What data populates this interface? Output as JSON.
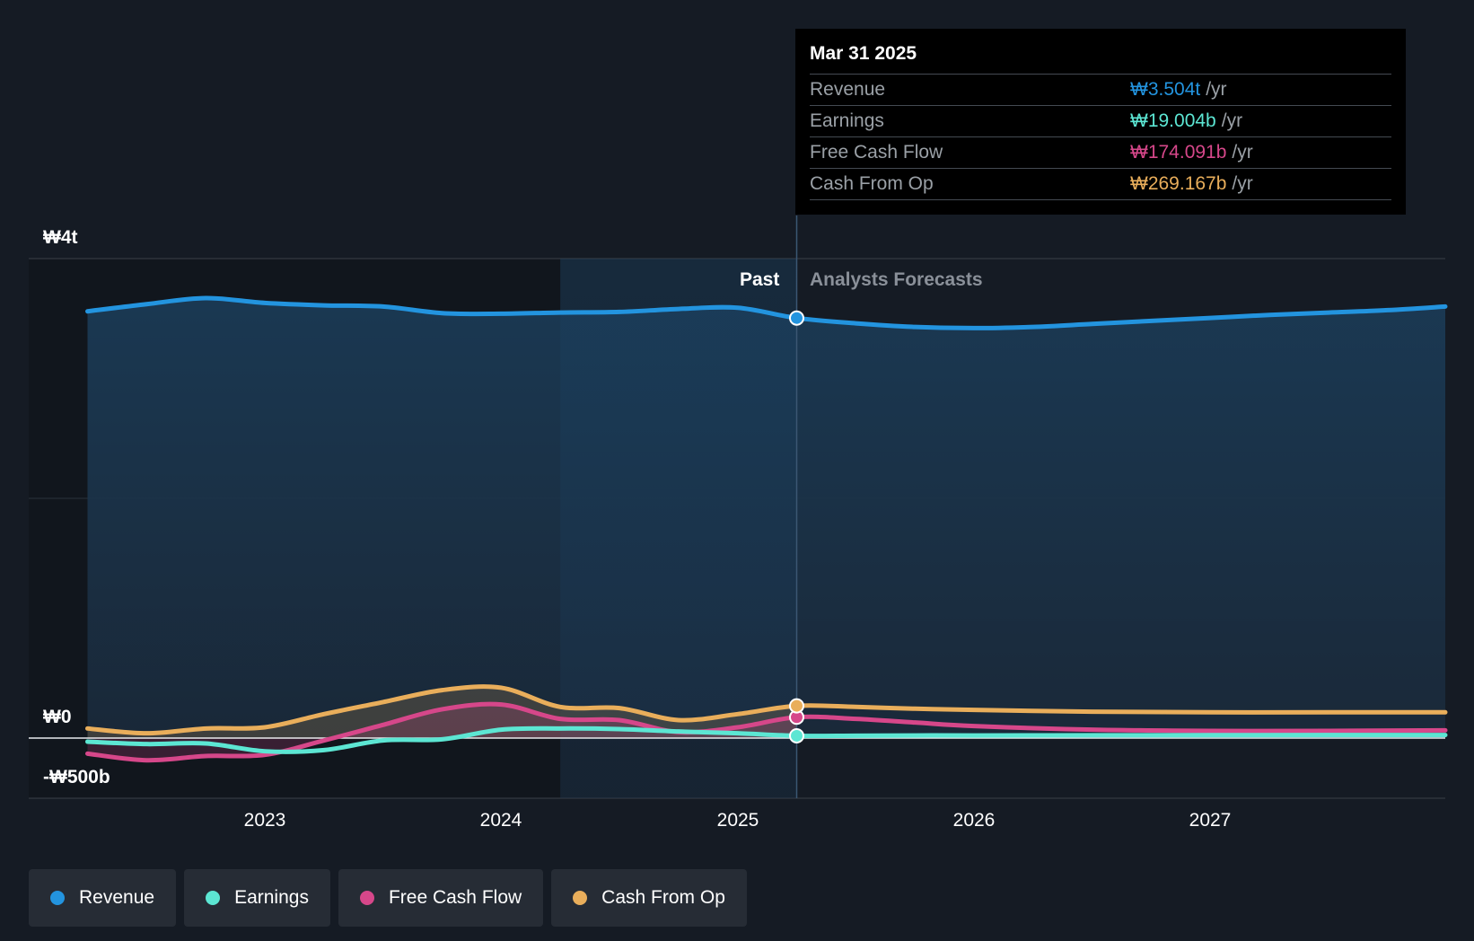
{
  "tooltip": {
    "date": "Mar 31 2025",
    "rows": [
      {
        "label": "Revenue",
        "value": "₩3.504t",
        "unit": "/yr",
        "color": "#2394df"
      },
      {
        "label": "Earnings",
        "value": "₩19.004b",
        "unit": "/yr",
        "color": "#5ce6d3"
      },
      {
        "label": "Free Cash Flow",
        "value": "₩174.091b",
        "unit": "/yr",
        "color": "#d6478a"
      },
      {
        "label": "Cash From Op",
        "value": "₩269.167b",
        "unit": "/yr",
        "color": "#e9ae5b"
      }
    ]
  },
  "sections": {
    "past": "Past",
    "forecast": "Analysts Forecasts"
  },
  "legend": [
    {
      "label": "Revenue",
      "color": "#2394df"
    },
    {
      "label": "Earnings",
      "color": "#5ce6d3"
    },
    {
      "label": "Free Cash Flow",
      "color": "#d6478a"
    },
    {
      "label": "Cash From Op",
      "color": "#e9ae5b"
    }
  ],
  "chart_data": {
    "type": "line",
    "currency": "₩",
    "y_unit": "billions",
    "ylim": [
      -500,
      4000
    ],
    "y_tick_labels": [
      {
        "value": 4000,
        "label": "₩4t"
      },
      {
        "value": 0,
        "label": "₩0"
      },
      {
        "value": -500,
        "label": "-₩500b"
      }
    ],
    "x_ticks": [
      2023,
      2024,
      2025,
      2026,
      2027
    ],
    "xlim": [
      2022.0,
      2028.0
    ],
    "past_forecast_split": 2025.25,
    "highlight_band": [
      2024.25,
      2025.25
    ],
    "series": [
      {
        "name": "Revenue",
        "color": "#2394df",
        "x": [
          2022.25,
          2022.5,
          2022.75,
          2023.0,
          2023.25,
          2023.5,
          2023.75,
          2024.0,
          2024.25,
          2024.5,
          2024.75,
          2025.0,
          2025.25,
          2025.5,
          2025.75,
          2026.0,
          2026.25,
          2026.5,
          2026.75,
          2027.0,
          2027.25,
          2027.5,
          2027.75,
          2028.0
        ],
        "y": [
          3560,
          3620,
          3670,
          3630,
          3610,
          3600,
          3545,
          3540,
          3550,
          3555,
          3580,
          3590,
          3504,
          3460,
          3430,
          3420,
          3430,
          3455,
          3480,
          3505,
          3530,
          3550,
          3570,
          3600
        ]
      },
      {
        "name": "Earnings",
        "color": "#5ce6d3",
        "x": [
          2022.25,
          2022.5,
          2022.75,
          2023.0,
          2023.25,
          2023.5,
          2023.75,
          2024.0,
          2024.25,
          2024.5,
          2024.75,
          2025.0,
          2025.25,
          2025.5,
          2025.75,
          2026.0,
          2026.5,
          2027.0,
          2027.5,
          2028.0
        ],
        "y": [
          -30,
          -50,
          -45,
          -110,
          -100,
          -20,
          -10,
          70,
          80,
          75,
          55,
          40,
          19,
          20,
          22,
          22,
          23,
          24,
          25,
          25
        ]
      },
      {
        "name": "Free Cash Flow",
        "color": "#d6478a",
        "x": [
          2022.25,
          2022.5,
          2022.75,
          2023.0,
          2023.25,
          2023.5,
          2023.75,
          2024.0,
          2024.25,
          2024.5,
          2024.75,
          2025.0,
          2025.25,
          2025.5,
          2025.75,
          2026.0,
          2026.5,
          2027.0,
          2027.5,
          2028.0
        ],
        "y": [
          -130,
          -185,
          -150,
          -140,
          -20,
          110,
          240,
          280,
          160,
          150,
          50,
          90,
          174,
          160,
          130,
          100,
          70,
          60,
          60,
          65
        ]
      },
      {
        "name": "Cash From Op",
        "color": "#e9ae5b",
        "x": [
          2022.25,
          2022.5,
          2022.75,
          2023.0,
          2023.25,
          2023.5,
          2023.75,
          2024.0,
          2024.25,
          2024.5,
          2024.75,
          2025.0,
          2025.25,
          2025.5,
          2025.75,
          2026.0,
          2026.5,
          2027.0,
          2027.5,
          2028.0
        ],
        "y": [
          80,
          40,
          80,
          90,
          200,
          300,
          400,
          420,
          260,
          250,
          150,
          200,
          269,
          260,
          245,
          235,
          220,
          215,
          215,
          215
        ]
      }
    ]
  }
}
